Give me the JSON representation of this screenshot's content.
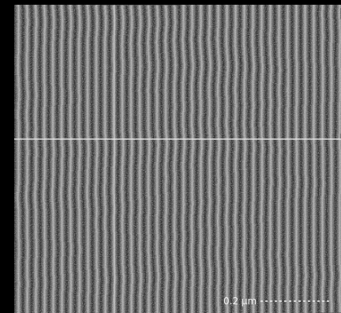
{
  "scale_label": "0.2 μm"
}
